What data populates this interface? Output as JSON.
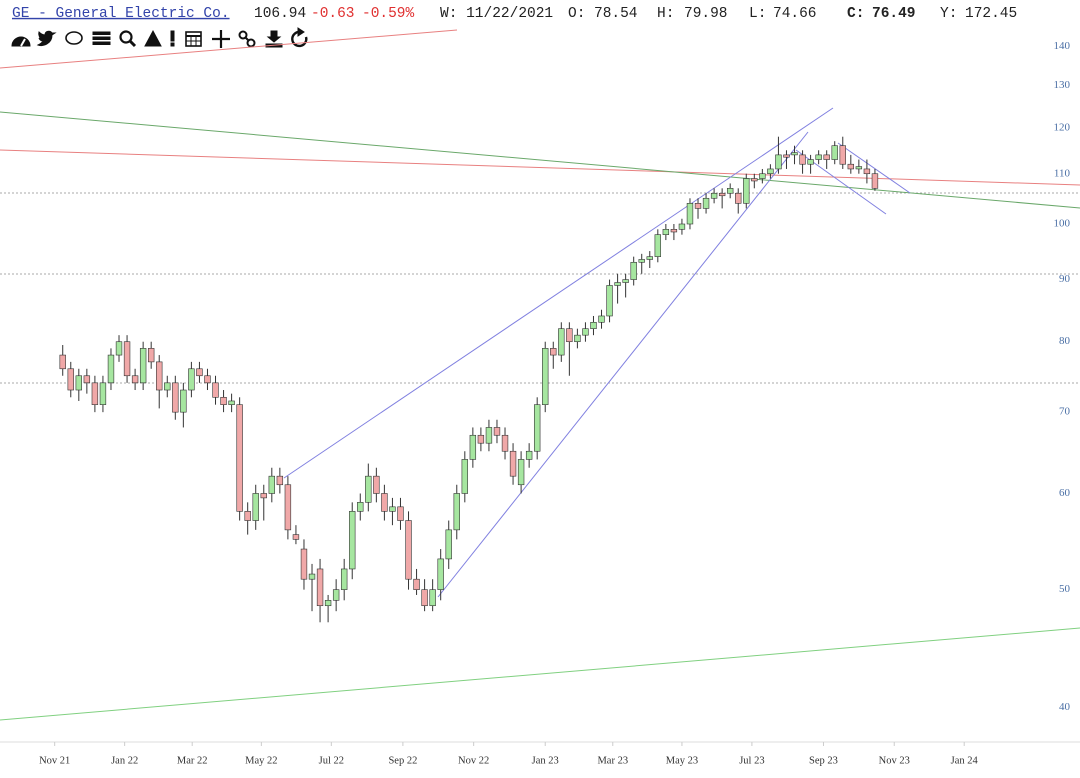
{
  "header": {
    "symbol": "GE - General Electric Co.",
    "price": "106.94",
    "change": "-0.63",
    "change_pct": "-0.59%",
    "week": "W: 11/22/2021",
    "open_label": "O:",
    "open": "78.54",
    "high_label": "H:",
    "high": "79.98",
    "low_label": "L:",
    "low": "74.66",
    "close_label": "C:",
    "close": "76.49",
    "year_label": "Y:",
    "year": "172.45"
  },
  "chart_data": {
    "type": "candlestick",
    "log_scale": true,
    "grid": false,
    "up_color": "#a6e6a0",
    "down_color": "#f0a8a8",
    "xlim": [
      -6.8,
      127.5
    ],
    "xticks": [
      {
        "value": 0,
        "label": "Nov 21"
      },
      {
        "value": 8.7,
        "label": "Jan 22"
      },
      {
        "value": 17.1,
        "label": "Mar 22"
      },
      {
        "value": 25.7,
        "label": "May 22"
      },
      {
        "value": 34.4,
        "label": "Jul 22"
      },
      {
        "value": 43.3,
        "label": "Sep 22"
      },
      {
        "value": 52.1,
        "label": "Nov 22"
      },
      {
        "value": 61,
        "label": "Jan 23"
      },
      {
        "value": 69.4,
        "label": "Mar 23"
      },
      {
        "value": 78,
        "label": "May 23"
      },
      {
        "value": 86.7,
        "label": "Jul 23"
      },
      {
        "value": 95.6,
        "label": "Sep 23"
      },
      {
        "value": 104.4,
        "label": "Nov 23"
      },
      {
        "value": 113.1,
        "label": "Jan 24"
      }
    ],
    "ylim": [
      37.6,
      145
    ],
    "yticks": [
      40,
      50,
      60,
      70,
      80,
      90,
      100,
      110,
      120,
      130,
      140
    ],
    "candles": [
      {
        "x": 1,
        "o": 78,
        "h": 79.5,
        "l": 75,
        "c": 76
      },
      {
        "x": 2,
        "o": 76,
        "h": 77,
        "l": 72,
        "c": 73
      },
      {
        "x": 3,
        "o": 73,
        "h": 76,
        "l": 71.5,
        "c": 75
      },
      {
        "x": 4,
        "o": 75,
        "h": 76,
        "l": 72.5,
        "c": 74
      },
      {
        "x": 5,
        "o": 74,
        "h": 75,
        "l": 70,
        "c": 71
      },
      {
        "x": 6,
        "o": 71,
        "h": 75,
        "l": 70,
        "c": 74
      },
      {
        "x": 7,
        "o": 74,
        "h": 79,
        "l": 73,
        "c": 78
      },
      {
        "x": 8,
        "o": 78,
        "h": 81,
        "l": 77,
        "c": 80
      },
      {
        "x": 9,
        "o": 80,
        "h": 81,
        "l": 74,
        "c": 75
      },
      {
        "x": 10,
        "o": 75,
        "h": 76,
        "l": 73,
        "c": 74
      },
      {
        "x": 11,
        "o": 74,
        "h": 80,
        "l": 73,
        "c": 79
      },
      {
        "x": 12,
        "o": 79,
        "h": 80,
        "l": 76,
        "c": 77
      },
      {
        "x": 13,
        "o": 77,
        "h": 78,
        "l": 70.5,
        "c": 73
      },
      {
        "x": 14,
        "o": 73,
        "h": 75,
        "l": 72,
        "c": 74
      },
      {
        "x": 15,
        "o": 74,
        "h": 75,
        "l": 69,
        "c": 70
      },
      {
        "x": 16,
        "o": 70,
        "h": 74,
        "l": 68,
        "c": 73
      },
      {
        "x": 17,
        "o": 73,
        "h": 77,
        "l": 72,
        "c": 76
      },
      {
        "x": 18,
        "o": 76,
        "h": 77,
        "l": 74,
        "c": 75
      },
      {
        "x": 19,
        "o": 75,
        "h": 76,
        "l": 73,
        "c": 74
      },
      {
        "x": 20,
        "o": 74,
        "h": 75,
        "l": 71,
        "c": 72
      },
      {
        "x": 21,
        "o": 72,
        "h": 73,
        "l": 70,
        "c": 71
      },
      {
        "x": 22,
        "o": 71,
        "h": 72.5,
        "l": 70,
        "c": 71.5
      },
      {
        "x": 23,
        "o": 71,
        "h": 72,
        "l": 57,
        "c": 58
      },
      {
        "x": 24,
        "o": 58,
        "h": 59,
        "l": 55.5,
        "c": 57
      },
      {
        "x": 25,
        "o": 57,
        "h": 61,
        "l": 56,
        "c": 60
      },
      {
        "x": 26,
        "o": 60,
        "h": 61,
        "l": 57,
        "c": 59.5
      },
      {
        "x": 27,
        "o": 60,
        "h": 63,
        "l": 59,
        "c": 62
      },
      {
        "x": 28,
        "o": 62,
        "h": 63,
        "l": 60,
        "c": 61
      },
      {
        "x": 29,
        "o": 61,
        "h": 62,
        "l": 55,
        "c": 56
      },
      {
        "x": 30,
        "o": 55.5,
        "h": 56.5,
        "l": 54.5,
        "c": 55
      },
      {
        "x": 31,
        "o": 54,
        "h": 55,
        "l": 50,
        "c": 51
      },
      {
        "x": 32,
        "o": 51,
        "h": 52.5,
        "l": 48,
        "c": 51.5
      },
      {
        "x": 33,
        "o": 52,
        "h": 53,
        "l": 47,
        "c": 48.5
      },
      {
        "x": 34,
        "o": 48.5,
        "h": 49.5,
        "l": 47,
        "c": 49
      },
      {
        "x": 35,
        "o": 49,
        "h": 51,
        "l": 48,
        "c": 50
      },
      {
        "x": 36,
        "o": 50,
        "h": 53,
        "l": 49,
        "c": 52
      },
      {
        "x": 37,
        "o": 52,
        "h": 59,
        "l": 51,
        "c": 58
      },
      {
        "x": 38,
        "o": 58,
        "h": 60,
        "l": 57,
        "c": 59
      },
      {
        "x": 39,
        "o": 59,
        "h": 63.5,
        "l": 58,
        "c": 62
      },
      {
        "x": 40,
        "o": 62,
        "h": 63,
        "l": 59,
        "c": 60
      },
      {
        "x": 41,
        "o": 60,
        "h": 61,
        "l": 57,
        "c": 58
      },
      {
        "x": 42,
        "o": 58,
        "h": 59.5,
        "l": 56.5,
        "c": 58.5
      },
      {
        "x": 43,
        "o": 58.5,
        "h": 59.5,
        "l": 56,
        "c": 57
      },
      {
        "x": 44,
        "o": 57,
        "h": 58,
        "l": 50,
        "c": 51
      },
      {
        "x": 45,
        "o": 51,
        "h": 52,
        "l": 49.5,
        "c": 50
      },
      {
        "x": 46,
        "o": 50,
        "h": 51,
        "l": 48,
        "c": 48.5
      },
      {
        "x": 47,
        "o": 48.5,
        "h": 51,
        "l": 48,
        "c": 50
      },
      {
        "x": 48,
        "o": 50,
        "h": 54,
        "l": 49,
        "c": 53
      },
      {
        "x": 49,
        "o": 53,
        "h": 57,
        "l": 52,
        "c": 56
      },
      {
        "x": 50,
        "o": 56,
        "h": 61,
        "l": 55,
        "c": 60
      },
      {
        "x": 51,
        "o": 60,
        "h": 65,
        "l": 59,
        "c": 64
      },
      {
        "x": 52,
        "o": 64,
        "h": 68,
        "l": 63,
        "c": 67
      },
      {
        "x": 53,
        "o": 67,
        "h": 68,
        "l": 65,
        "c": 66
      },
      {
        "x": 54,
        "o": 66,
        "h": 69,
        "l": 65,
        "c": 68
      },
      {
        "x": 55,
        "o": 68,
        "h": 69,
        "l": 66,
        "c": 67
      },
      {
        "x": 56,
        "o": 67,
        "h": 68,
        "l": 64,
        "c": 65
      },
      {
        "x": 57,
        "o": 65,
        "h": 66,
        "l": 61,
        "c": 62
      },
      {
        "x": 58,
        "o": 61,
        "h": 65,
        "l": 60,
        "c": 64
      },
      {
        "x": 59,
        "o": 64,
        "h": 66,
        "l": 63,
        "c": 65
      },
      {
        "x": 60,
        "o": 65,
        "h": 72,
        "l": 64,
        "c": 71
      },
      {
        "x": 61,
        "o": 71,
        "h": 80,
        "l": 70,
        "c": 79
      },
      {
        "x": 62,
        "o": 79,
        "h": 80,
        "l": 76,
        "c": 78
      },
      {
        "x": 63,
        "o": 78,
        "h": 83,
        "l": 77,
        "c": 82
      },
      {
        "x": 64,
        "o": 82,
        "h": 83,
        "l": 75,
        "c": 80
      },
      {
        "x": 65,
        "o": 80,
        "h": 82,
        "l": 79,
        "c": 81
      },
      {
        "x": 66,
        "o": 81,
        "h": 83,
        "l": 80,
        "c": 82
      },
      {
        "x": 67,
        "o": 82,
        "h": 84,
        "l": 81,
        "c": 83
      },
      {
        "x": 68,
        "o": 83,
        "h": 85,
        "l": 82,
        "c": 84
      },
      {
        "x": 69,
        "o": 84,
        "h": 90,
        "l": 83,
        "c": 89
      },
      {
        "x": 70,
        "o": 89,
        "h": 91,
        "l": 86,
        "c": 89.5
      },
      {
        "x": 71,
        "o": 89.5,
        "h": 91,
        "l": 87,
        "c": 90
      },
      {
        "x": 72,
        "o": 90,
        "h": 94,
        "l": 89,
        "c": 93
      },
      {
        "x": 73,
        "o": 93,
        "h": 94.5,
        "l": 91,
        "c": 93.5
      },
      {
        "x": 74,
        "o": 93.5,
        "h": 95,
        "l": 92,
        "c": 94
      },
      {
        "x": 75,
        "o": 94,
        "h": 99,
        "l": 93,
        "c": 98
      },
      {
        "x": 76,
        "o": 98,
        "h": 100,
        "l": 97,
        "c": 99
      },
      {
        "x": 77,
        "o": 99,
        "h": 100,
        "l": 97,
        "c": 98.5
      },
      {
        "x": 78,
        "o": 99,
        "h": 101,
        "l": 98,
        "c": 100
      },
      {
        "x": 79,
        "o": 100,
        "h": 105,
        "l": 99,
        "c": 104
      },
      {
        "x": 80,
        "o": 104,
        "h": 105,
        "l": 101,
        "c": 103
      },
      {
        "x": 81,
        "o": 103,
        "h": 106,
        "l": 102,
        "c": 105
      },
      {
        "x": 82,
        "o": 105,
        "h": 107,
        "l": 104,
        "c": 106
      },
      {
        "x": 83,
        "o": 106,
        "h": 107,
        "l": 103,
        "c": 105.5
      },
      {
        "x": 84,
        "o": 106,
        "h": 108,
        "l": 105,
        "c": 107
      },
      {
        "x": 85,
        "o": 106,
        "h": 107,
        "l": 102,
        "c": 104
      },
      {
        "x": 86,
        "o": 104,
        "h": 110,
        "l": 103,
        "c": 109
      },
      {
        "x": 87,
        "o": 109,
        "h": 110,
        "l": 107,
        "c": 108.5
      },
      {
        "x": 88,
        "o": 109,
        "h": 111,
        "l": 108,
        "c": 110
      },
      {
        "x": 89,
        "o": 110,
        "h": 112,
        "l": 109,
        "c": 111
      },
      {
        "x": 90,
        "o": 111,
        "h": 118,
        "l": 110,
        "c": 114
      },
      {
        "x": 91,
        "o": 114,
        "h": 115,
        "l": 111,
        "c": 113.5
      },
      {
        "x": 92,
        "o": 114,
        "h": 116,
        "l": 112,
        "c": 114.5
      },
      {
        "x": 93,
        "o": 114,
        "h": 115,
        "l": 110,
        "c": 112
      },
      {
        "x": 94,
        "o": 112,
        "h": 114,
        "l": 110,
        "c": 113
      },
      {
        "x": 95,
        "o": 113,
        "h": 115,
        "l": 112,
        "c": 114
      },
      {
        "x": 96,
        "o": 114,
        "h": 115,
        "l": 111,
        "c": 113
      },
      {
        "x": 97,
        "o": 113,
        "h": 117,
        "l": 112,
        "c": 116
      },
      {
        "x": 98,
        "o": 116,
        "h": 118,
        "l": 111,
        "c": 112
      },
      {
        "x": 99,
        "o": 112,
        "h": 114,
        "l": 110,
        "c": 111
      },
      {
        "x": 100,
        "o": 111,
        "h": 113,
        "l": 110,
        "c": 111.5
      },
      {
        "x": 101,
        "o": 111,
        "h": 113,
        "l": 108,
        "c": 110
      },
      {
        "x": 102,
        "o": 110,
        "h": 111,
        "l": 106.5,
        "c": 107
      }
    ]
  }
}
